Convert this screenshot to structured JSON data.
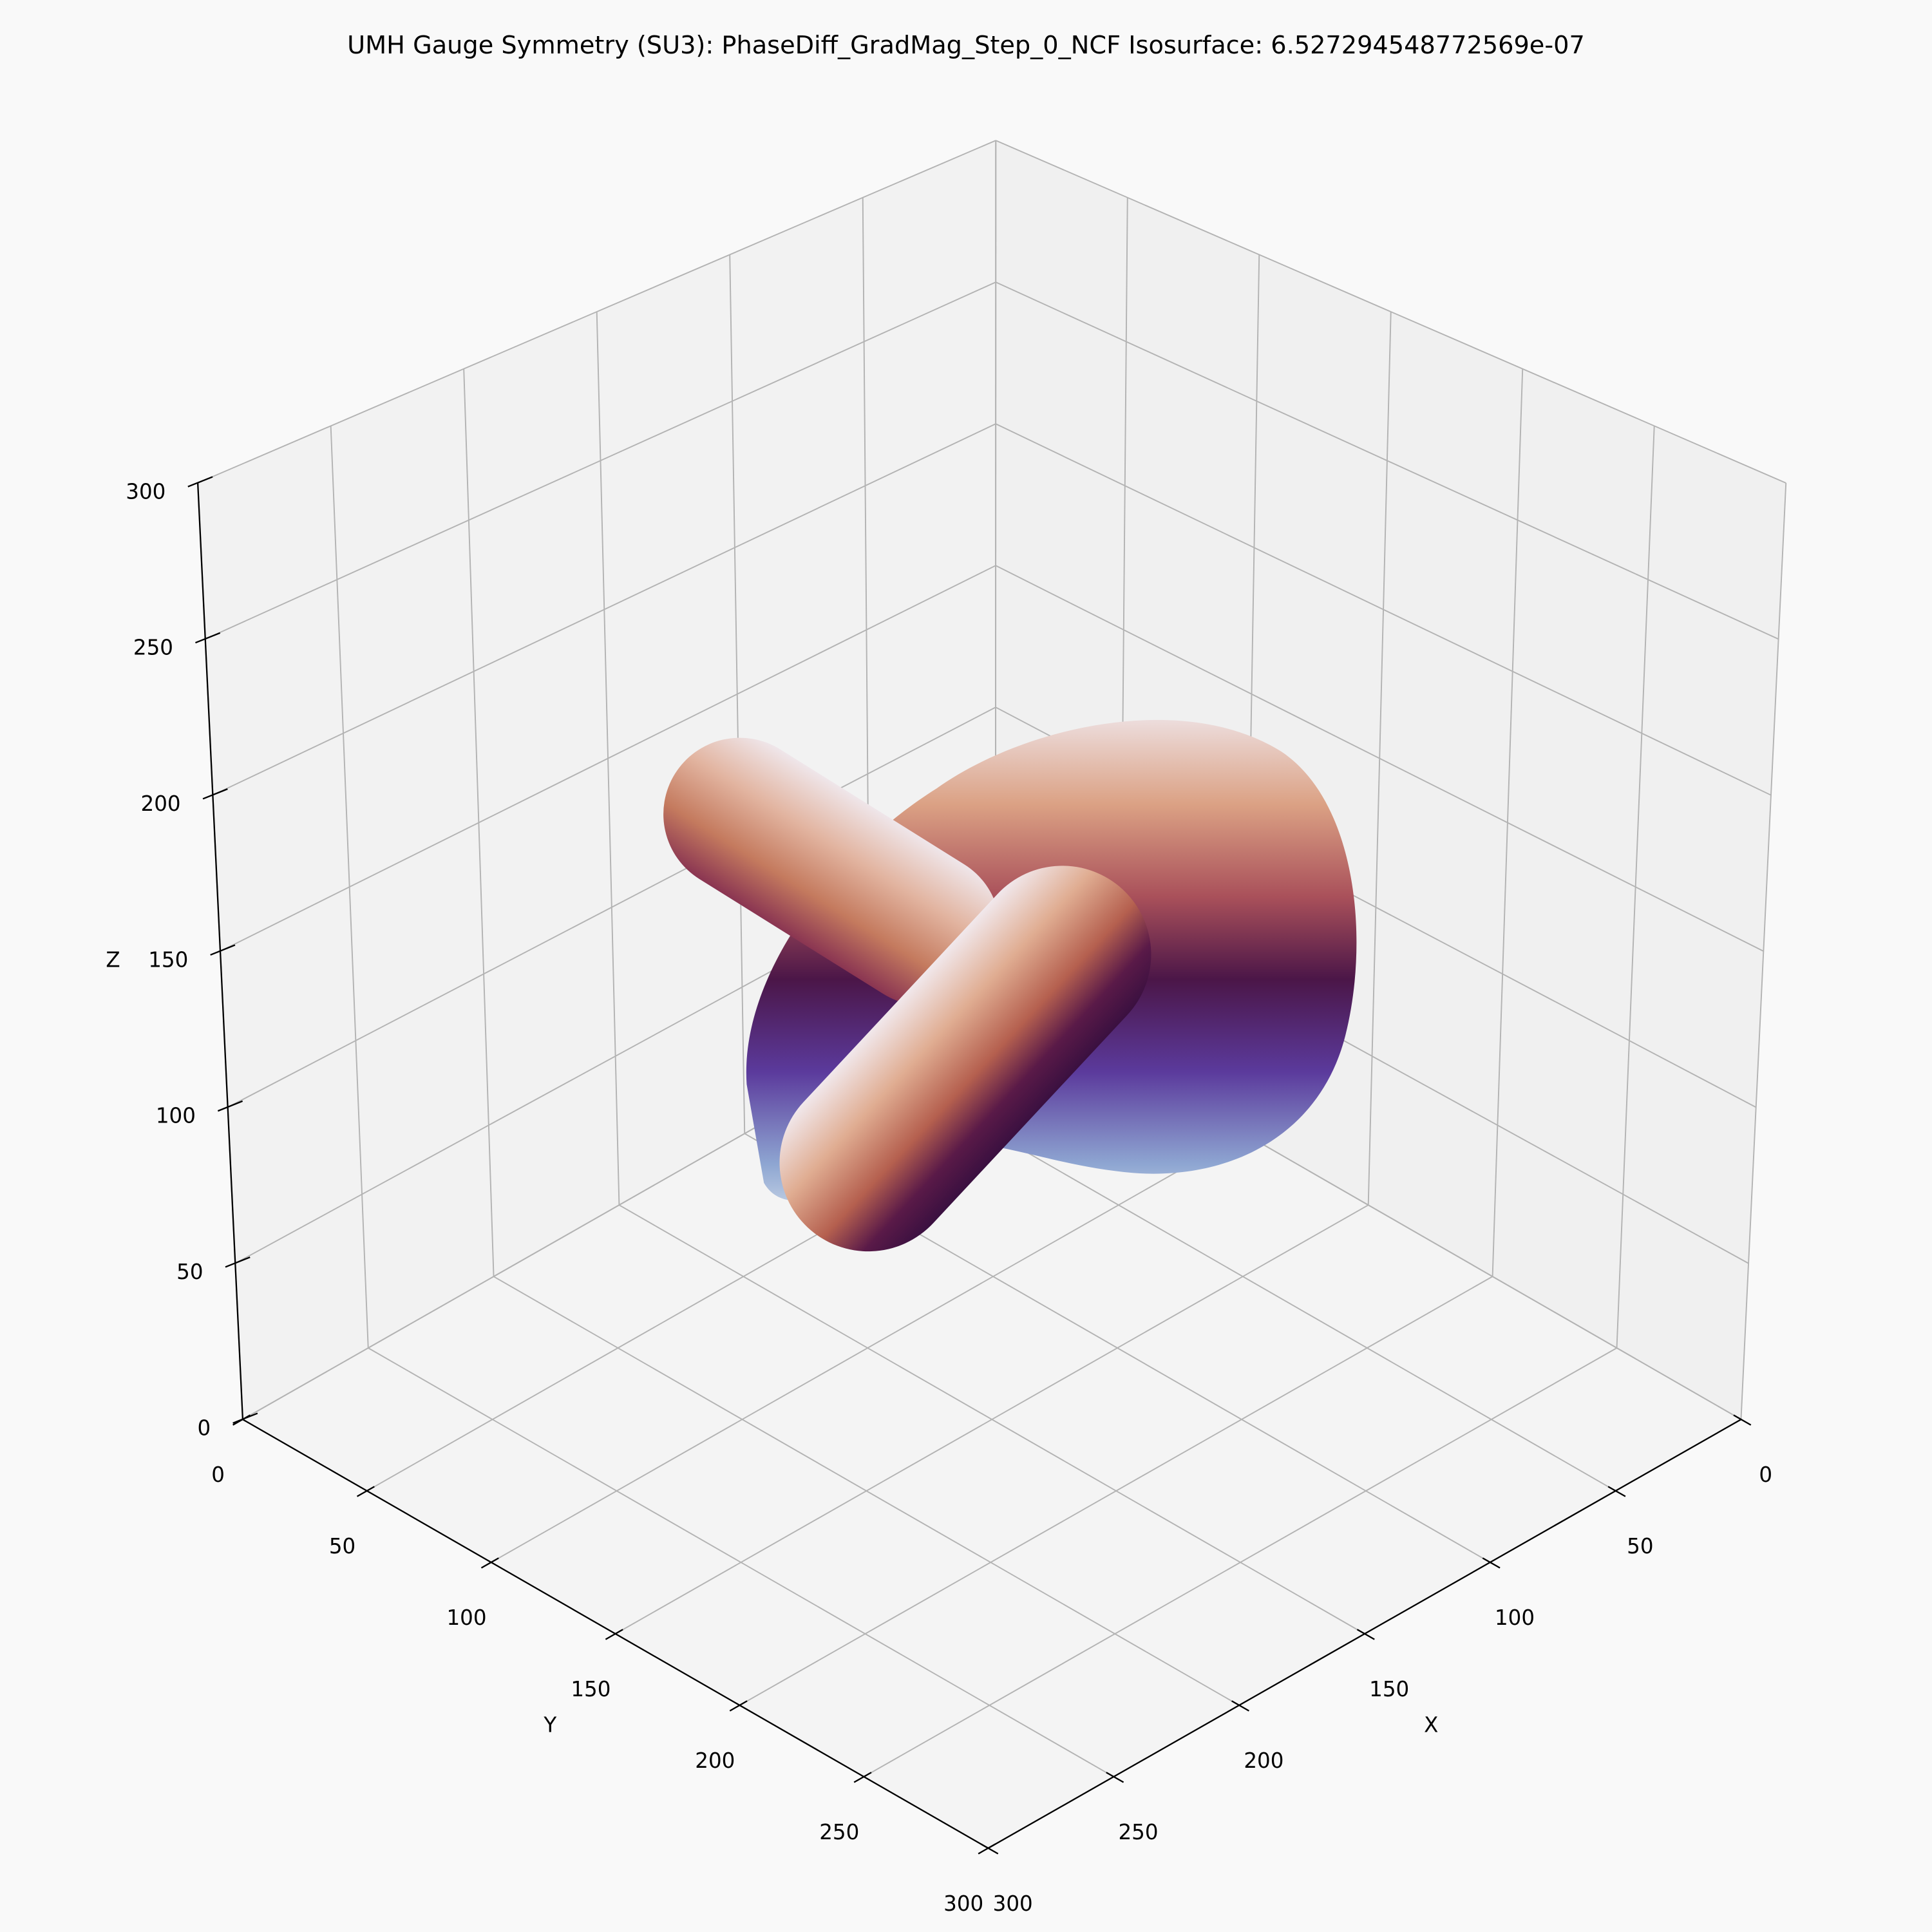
{
  "chart_data": {
    "type": "isosurface3d",
    "title": "UMH Gauge Symmetry (SU3): PhaseDiff_GradMag_Step_0_NCF Isosurface: 6.527294548772569e-07",
    "xlabel": "X",
    "ylabel": "Y",
    "zlabel": "Z",
    "xlim": [
      0,
      300
    ],
    "ylim": [
      0,
      300
    ],
    "zlim": [
      0,
      300
    ],
    "xticks": [
      0,
      50,
      100,
      150,
      200,
      250,
      300
    ],
    "yticks": [
      0,
      50,
      100,
      150,
      200,
      250,
      300
    ],
    "zticks": [
      0,
      50,
      100,
      150,
      200,
      250,
      300
    ],
    "grid": true
  }
}
